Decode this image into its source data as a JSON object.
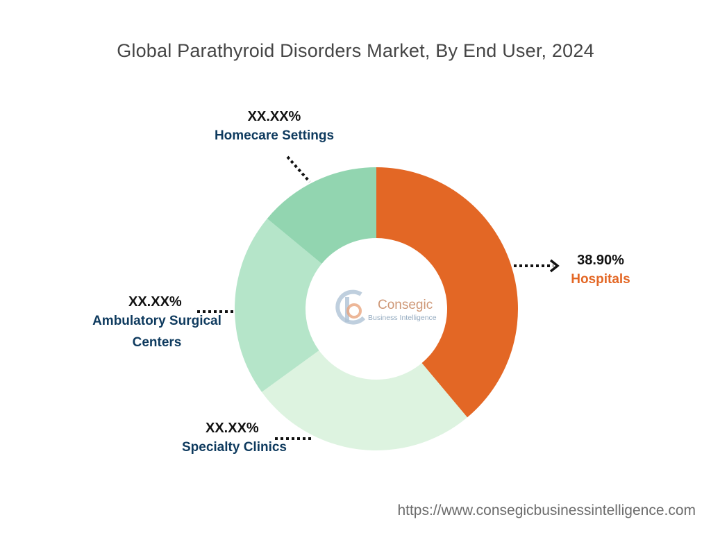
{
  "title": "Global Parathyroid Disorders Market, By End User, 2024",
  "chart_data": {
    "type": "pie",
    "title": "Global Parathyroid Disorders Market, By End User, 2024",
    "donut": true,
    "segments": [
      {
        "name": "Hospitals",
        "value": 38.9,
        "label": "38.90%",
        "color": "#E36725",
        "name_color": "#E36725"
      },
      {
        "name": "Specialty Clinics",
        "value": 26.1,
        "label": "XX.XX%",
        "color": "#DDF3E0",
        "name_color": "#0E3A5E"
      },
      {
        "name": "Ambulatory Surgical Centers",
        "value": 21.0,
        "label": "XX.XX%",
        "color": "#B5E5C9",
        "name_color": "#0E3A5E"
      },
      {
        "name": "Homecare Settings",
        "value": 14.0,
        "label": "XX.XX%",
        "color": "#92D5B0",
        "name_color": "#0E3A5E"
      }
    ]
  },
  "labels": {
    "hospitals": {
      "pct": "38.90%",
      "name": "Hospitals"
    },
    "specialty": {
      "pct": "XX.XX%",
      "name": "Specialty Clinics"
    },
    "ambulatory": {
      "pct": "XX.XX%",
      "name": "Ambulatory Surgical Centers"
    },
    "homecare": {
      "pct": "XX.XX%",
      "name": "Homecare Settings"
    }
  },
  "logo": {
    "name": "Consegic",
    "tagline": "Business Intelligence"
  },
  "source_url": "https://www.consegicbusinessintelligence.com"
}
